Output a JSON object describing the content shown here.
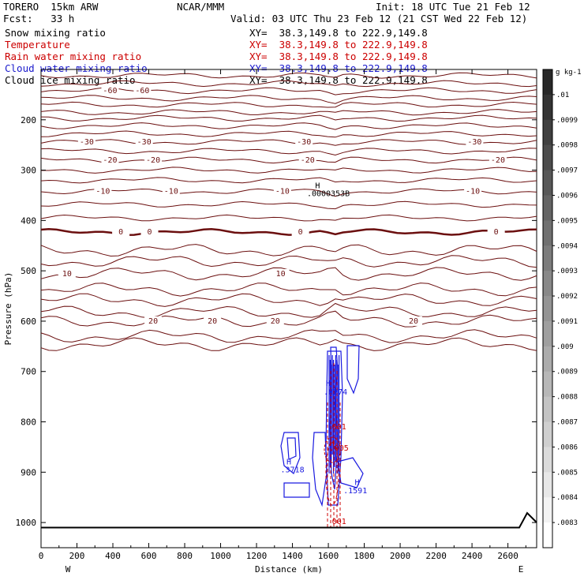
{
  "header": {
    "model": "TORERO  15km ARW",
    "org": "NCAR/MMM",
    "init": "Init: 18 UTC Tue 21 Feb 12",
    "fcst": "Fcst:   33 h",
    "valid": "Valid: 03 UTC Thu 23 Feb 12 (21 CST Wed 22 Feb 12)"
  },
  "fields": [
    {
      "name": "Snow mixing ratio",
      "xy": "XY=  38.3,149.8 to 222.9,149.8",
      "color": "#000000"
    },
    {
      "name": "Temperature",
      "xy": "XY=  38.3,149.8 to 222.9,149.8",
      "color": "#cc0000"
    },
    {
      "name": "Rain water mixing ratio",
      "xy": "XY=  38.3,149.8 to 222.9,149.8",
      "color": "#cc0000"
    },
    {
      "name": "Cloud water mixing ratio",
      "xy": "XY=  38.3,149.8 to 222.9,149.8",
      "color": "#1a1acc"
    },
    {
      "name": "Cloud ice mixing ratio",
      "xy": "XY=  38.3,149.8 to 222.9,149.8",
      "color": "#000000"
    }
  ],
  "colors": {
    "temperature": "#6b0f0f",
    "cloud_water": "#1a1ae0",
    "rain_water": "#cc0000",
    "terrain": "#000000"
  },
  "chart_data": {
    "type": "line",
    "xlabel": "Distance (km)",
    "ylabel": "Pressure (hPa)",
    "xlim": [
      0,
      2760
    ],
    "ylim": [
      1050,
      100
    ],
    "xticks": [
      0,
      200,
      400,
      600,
      800,
      1000,
      1200,
      1400,
      1600,
      1800,
      2000,
      2200,
      2400,
      2600
    ],
    "yticks": [
      200,
      300,
      400,
      500,
      600,
      700,
      800,
      900,
      1000
    ],
    "x_end_labels": {
      "left": "W",
      "right": "E"
    },
    "temperature_contours": [
      {
        "p": 112
      },
      {
        "p": 128
      },
      {
        "p": 142,
        "labels": [
          {
            "x": 380,
            "t": "-60"
          },
          {
            "x": 560,
            "t": "-60"
          }
        ]
      },
      {
        "p": 157
      },
      {
        "p": 170
      },
      {
        "p": 185
      },
      {
        "p": 197
      },
      {
        "p": 212
      },
      {
        "p": 228
      },
      {
        "p": 244,
        "labels": [
          {
            "x": 250,
            "t": "-30"
          },
          {
            "x": 570,
            "t": "-30"
          },
          {
            "x": 1460,
            "t": "-30"
          },
          {
            "x": 2410,
            "t": "-30"
          }
        ]
      },
      {
        "p": 262
      },
      {
        "p": 280,
        "labels": [
          {
            "x": 380,
            "t": "-20"
          },
          {
            "x": 620,
            "t": "-20"
          },
          {
            "x": 1480,
            "t": "-20"
          },
          {
            "x": 2540,
            "t": "-20"
          }
        ]
      },
      {
        "p": 300
      },
      {
        "p": 320
      },
      {
        "p": 342,
        "labels": [
          {
            "x": 340,
            "t": "-10"
          },
          {
            "x": 720,
            "t": "-10"
          },
          {
            "x": 1340,
            "t": "-10"
          },
          {
            "x": 2400,
            "t": "-10"
          }
        ]
      },
      {
        "p": 368
      },
      {
        "p": 395
      },
      {
        "p": 423,
        "labels": [
          {
            "x": 440,
            "t": "0"
          },
          {
            "x": 600,
            "t": "0"
          },
          {
            "x": 1440,
            "t": "0"
          },
          {
            "x": 2530,
            "t": "0"
          }
        ],
        "bold": true
      },
      {
        "p": 459
      },
      {
        "p": 481
      },
      {
        "p": 506,
        "labels": [
          {
            "x": 140,
            "t": "10"
          },
          {
            "x": 1330,
            "t": "10"
          }
        ]
      },
      {
        "p": 537
      },
      {
        "p": 558
      },
      {
        "p": 582
      },
      {
        "p": 600,
        "labels": [
          {
            "x": 620,
            "t": "20"
          },
          {
            "x": 950,
            "t": "20"
          },
          {
            "x": 1300,
            "t": "20"
          },
          {
            "x": 2070,
            "t": "20"
          }
        ]
      },
      {
        "p": 630
      },
      {
        "p": 646
      }
    ],
    "temperature_labels": [
      "-60",
      "-30",
      "-20",
      "-10",
      "0",
      "10",
      "20"
    ],
    "annotations": [
      {
        "text": "H",
        "x": 1540,
        "p": 336,
        "color": "#000000"
      },
      {
        "text": ".0000353B",
        "x": 1600,
        "p": 352,
        "color": "#000000"
      },
      {
        "text": "H",
        "x": 1600,
        "p": 729,
        "color": "#1a1ae0"
      },
      {
        "text": ".8274",
        "x": 1640,
        "p": 746,
        "color": "#1a1ae0"
      },
      {
        "text": "H",
        "x": 1380,
        "p": 885,
        "color": "#1a1ae0"
      },
      {
        "text": ".3718",
        "x": 1400,
        "p": 900,
        "color": "#1a1ae0"
      },
      {
        "text": "H",
        "x": 1760,
        "p": 925,
        "color": "#1a1ae0"
      },
      {
        "text": ".1591",
        "x": 1750,
        "p": 942,
        "color": "#1a1ae0"
      },
      {
        "text": "001",
        "x": 1660,
        "p": 815,
        "color": "#cc0000"
      },
      {
        "text": ".005",
        "x": 1660,
        "p": 857,
        "color": "#cc0000"
      },
      {
        "text": "H",
        "x": 1620,
        "p": 848,
        "color": "#cc0000"
      },
      {
        "text": "001",
        "x": 1660,
        "p": 1003,
        "color": "#cc0000"
      }
    ],
    "colorbar": {
      "unit": "g kg-1",
      "ticks": [
        ".01",
        ".0099",
        ".0098",
        ".0097",
        ".0096",
        ".0095",
        ".0094",
        ".0093",
        ".0092",
        ".0091",
        ".009",
        ".0089",
        ".0088",
        ".0087",
        ".0086",
        ".0085",
        ".0084",
        ".0083"
      ]
    }
  }
}
